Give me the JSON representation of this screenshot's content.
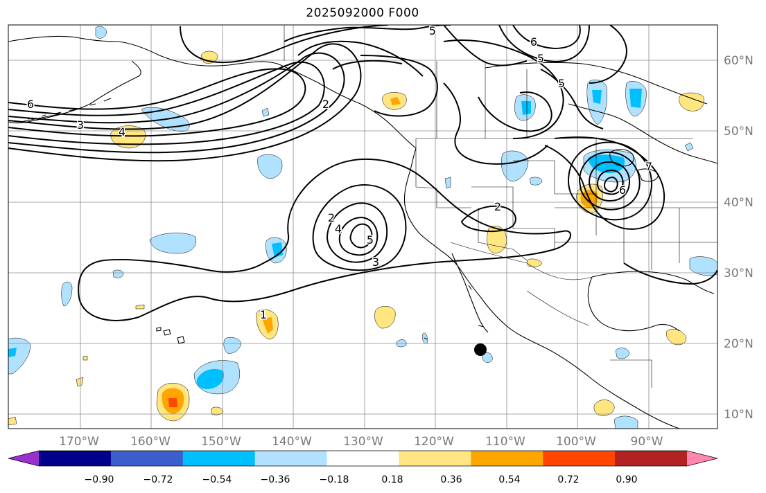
{
  "title": "2025092000 F000",
  "axes": {
    "lat_labels": [
      "60°N",
      "50°N",
      "40°N",
      "30°N",
      "20°N",
      "10°N"
    ],
    "lon_labels": [
      "170°W",
      "160°W",
      "150°W",
      "140°W",
      "130°W",
      "120°W",
      "110°W",
      "100°W",
      "90°W"
    ]
  },
  "colorbar": {
    "tick_labels": [
      "−0.90",
      "−0.72",
      "−0.54",
      "−0.36",
      "−0.18",
      "0.18",
      "0.36",
      "0.54",
      "0.72",
      "0.90"
    ],
    "colors": [
      "#9b30d0",
      "#00008b",
      "#3a5fcd",
      "#00bfff",
      "#b0e2ff",
      "#ffffff",
      "#ffe680",
      "#ffa500",
      "#ff4500",
      "#b22222",
      "#ff86b0"
    ]
  },
  "contour_labels": [
    {
      "text": "6"
    },
    {
      "text": "3"
    },
    {
      "text": "4"
    },
    {
      "text": "2"
    },
    {
      "text": "5"
    },
    {
      "text": "6"
    },
    {
      "text": "5"
    },
    {
      "text": "5"
    },
    {
      "text": "2"
    },
    {
      "text": "4"
    },
    {
      "text": "5"
    },
    {
      "text": "3"
    },
    {
      "text": "2"
    },
    {
      "text": "1"
    },
    {
      "text": "6"
    },
    {
      "text": "7"
    }
  ]
}
